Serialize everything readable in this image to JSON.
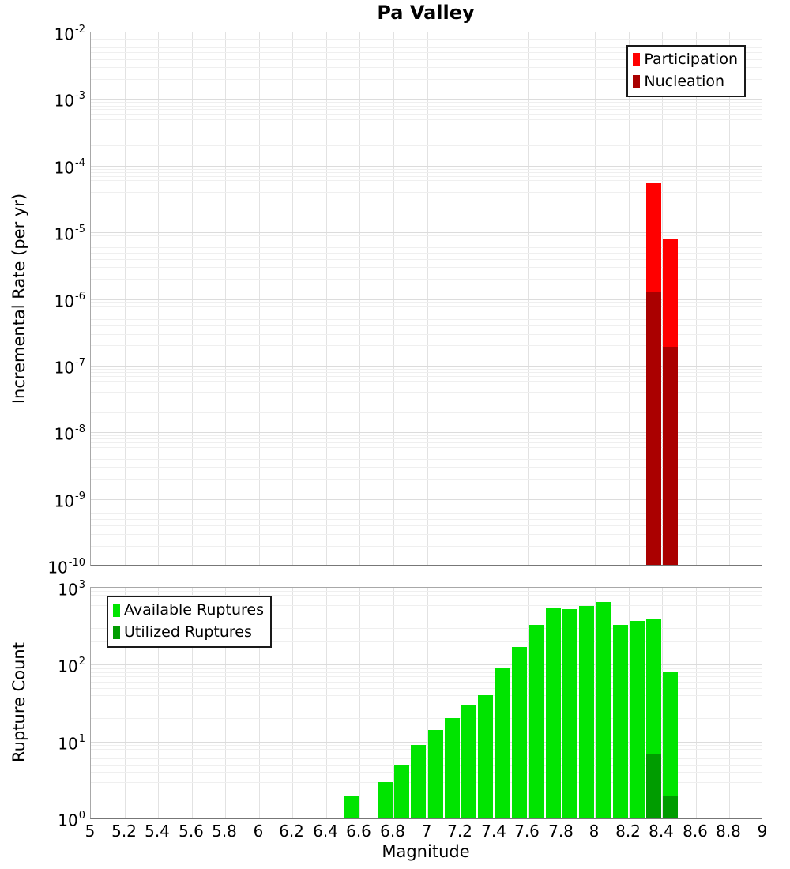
{
  "chart_data": [
    {
      "type": "bar",
      "title": "Pa Valley",
      "ylabel": "Incremental Rate (per yr)",
      "xlabel": "Magnitude",
      "y_scale": "log",
      "grid": true,
      "legend_position": "top-right",
      "xlim": [
        5,
        9
      ],
      "ylim_log10": [
        -10,
        -2
      ],
      "x_ticks": [
        5,
        5.2,
        5.4,
        5.6,
        5.8,
        6,
        6.2,
        6.4,
        6.6,
        6.8,
        7,
        7.2,
        7.4,
        7.6,
        7.8,
        8,
        8.2,
        8.4,
        8.6,
        8.8,
        9
      ],
      "bar_width_mag": 0.09,
      "x": [
        8.35,
        8.45
      ],
      "series": [
        {
          "name": "Participation",
          "color": "#FF0000",
          "values": [
            5.5e-05,
            8e-06
          ]
        },
        {
          "name": "Nucleation",
          "color": "#AA0000",
          "values": [
            1.3e-06,
            1.9e-07
          ]
        }
      ]
    },
    {
      "type": "bar",
      "title": "",
      "ylabel": "Rupture Count",
      "xlabel": "Magnitude",
      "y_scale": "log",
      "grid": true,
      "legend_position": "top-left",
      "xlim": [
        5,
        9
      ],
      "ylim_log10": [
        0,
        3
      ],
      "x_ticks": [
        5,
        5.2,
        5.4,
        5.6,
        5.8,
        6,
        6.2,
        6.4,
        6.6,
        6.8,
        7,
        7.2,
        7.4,
        7.6,
        7.8,
        8,
        8.2,
        8.4,
        8.6,
        8.8,
        9
      ],
      "bar_width_mag": 0.09,
      "x": [
        6.55,
        6.75,
        6.85,
        6.95,
        7.05,
        7.15,
        7.25,
        7.35,
        7.45,
        7.55,
        7.65,
        7.75,
        7.85,
        7.95,
        8.05,
        8.15,
        8.25,
        8.35,
        8.45
      ],
      "series": [
        {
          "name": "Available Ruptures",
          "color": "#00E400",
          "values": [
            2,
            3,
            5,
            9,
            14,
            20,
            30,
            40,
            90,
            170,
            330,
            560,
            530,
            580,
            660,
            330,
            370,
            390,
            80
          ]
        },
        {
          "name": "Utilized Ruptures",
          "color": "#009C00",
          "values": [
            null,
            null,
            null,
            null,
            null,
            null,
            null,
            null,
            null,
            null,
            null,
            null,
            null,
            null,
            null,
            null,
            null,
            7,
            2
          ]
        }
      ]
    }
  ]
}
